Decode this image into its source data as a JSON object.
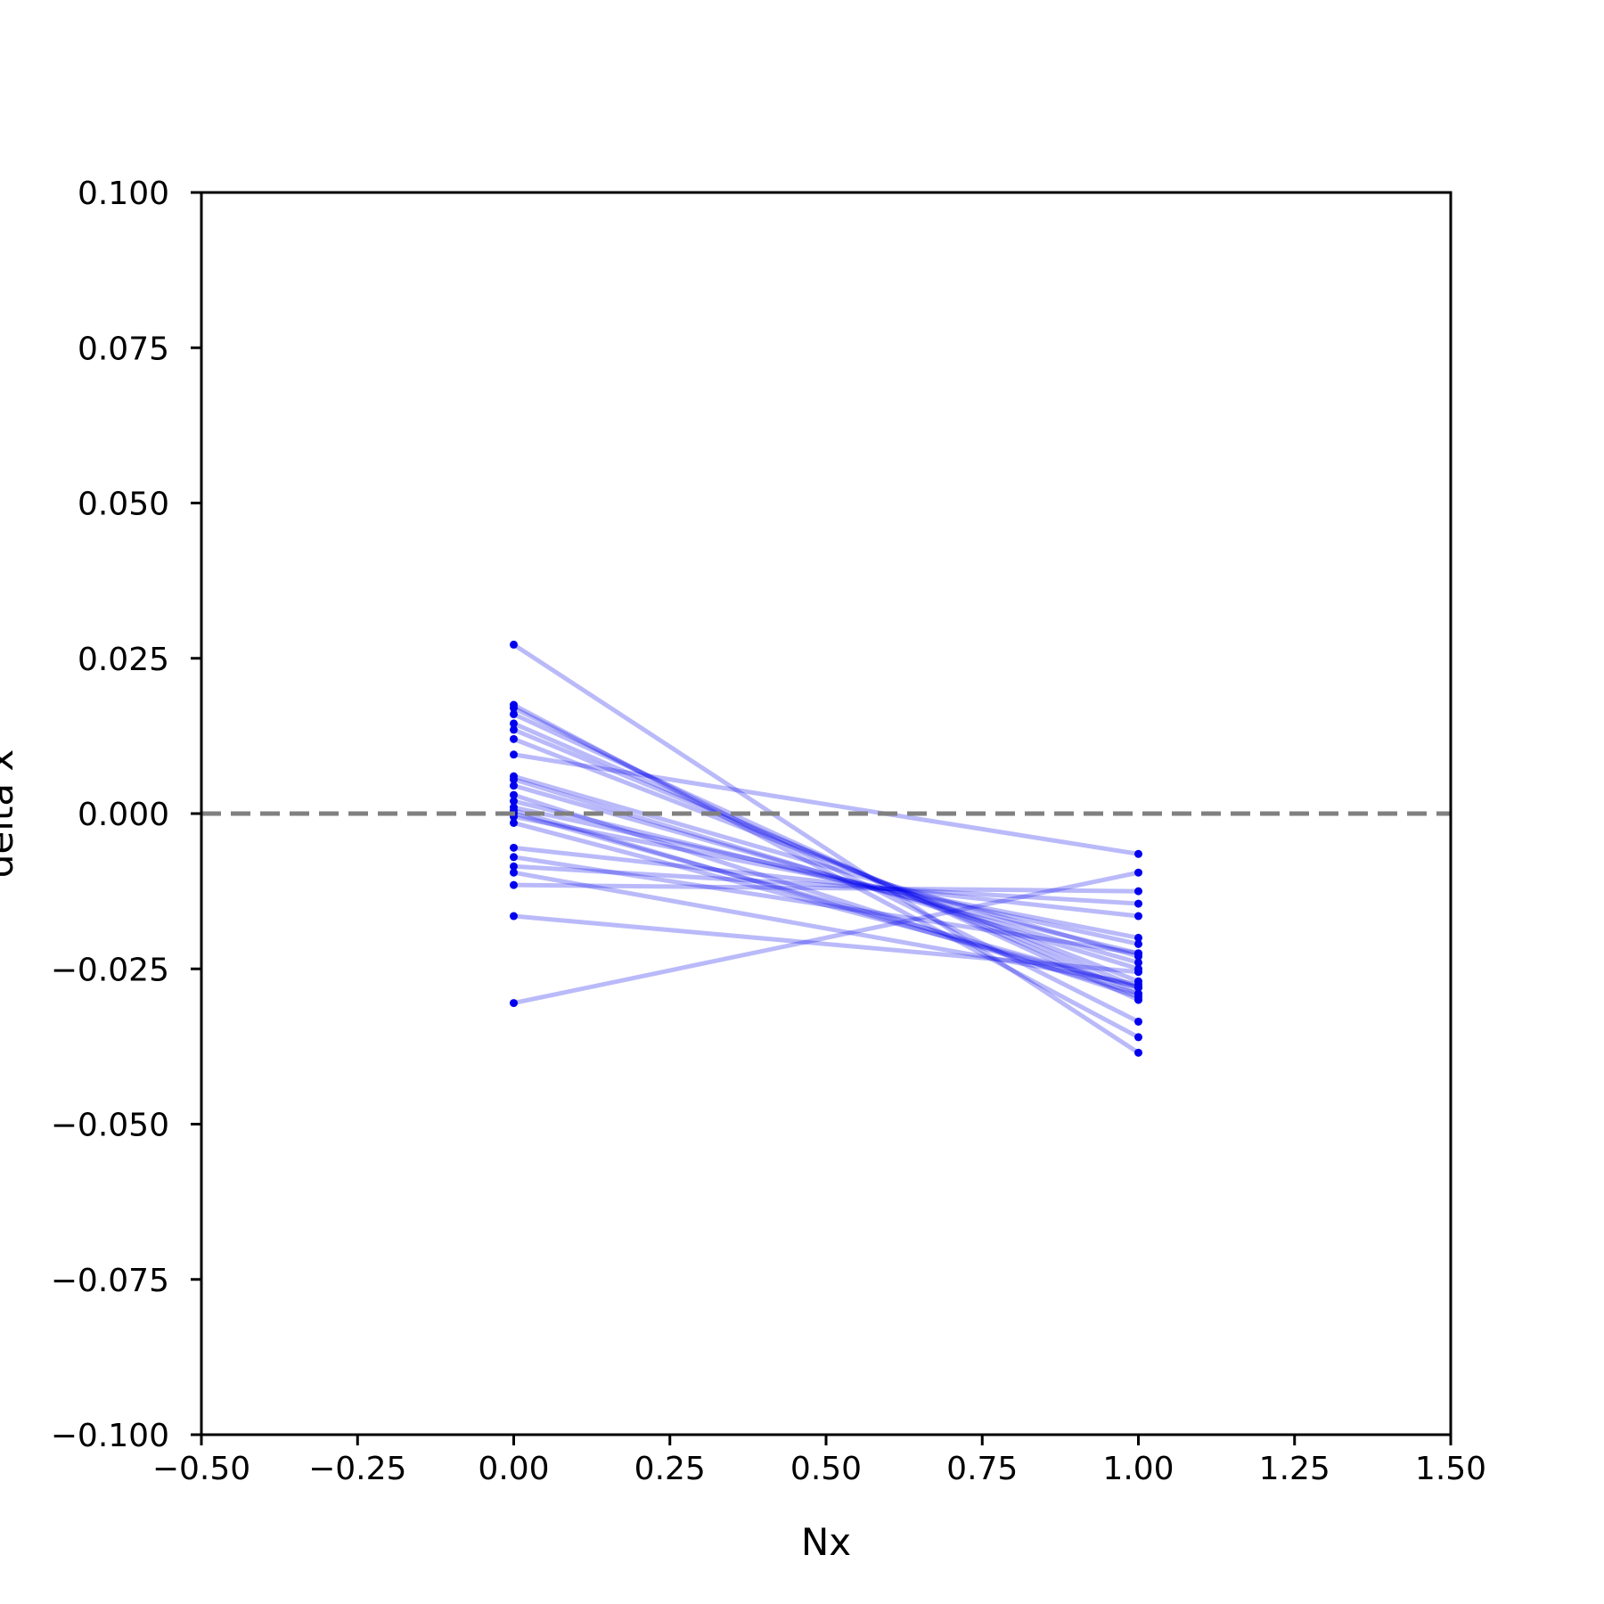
{
  "chart_data": {
    "type": "line",
    "title": "",
    "xlabel": "Nx",
    "ylabel": "delta x",
    "xlim": [
      -0.5,
      1.5
    ],
    "ylim": [
      -0.1,
      0.1
    ],
    "x_ticks": [
      -0.5,
      -0.25,
      0.0,
      0.25,
      0.5,
      0.75,
      1.0,
      1.25,
      1.5
    ],
    "x_tick_labels": [
      "−0.50",
      "−0.25",
      "0.00",
      "0.25",
      "0.50",
      "0.75",
      "1.00",
      "1.25",
      "1.50"
    ],
    "y_ticks": [
      0.1,
      0.075,
      0.05,
      0.025,
      0.0,
      -0.025,
      -0.05,
      -0.075,
      -0.1
    ],
    "y_tick_labels": [
      "0.100",
      "0.075",
      "0.050",
      "0.025",
      "0.000",
      "−0.025",
      "−0.050",
      "−0.075",
      "−0.100"
    ],
    "grid": false,
    "reference_line": {
      "y": 0.0,
      "style": "dashed",
      "color": "#808080"
    },
    "series_color": "#0000ee",
    "x": [
      0,
      1
    ],
    "series": [
      {
        "values": [
          0.0272,
          -0.0385
        ]
      },
      {
        "values": [
          0.0175,
          -0.036
        ]
      },
      {
        "values": [
          0.017,
          -0.0335
        ]
      },
      {
        "values": [
          0.016,
          -0.03
        ]
      },
      {
        "values": [
          0.0145,
          -0.029
        ]
      },
      {
        "values": [
          0.0135,
          -0.028
        ]
      },
      {
        "values": [
          0.012,
          -0.027
        ]
      },
      {
        "values": [
          0.0095,
          -0.0065
        ]
      },
      {
        "values": [
          0.006,
          -0.023
        ]
      },
      {
        "values": [
          0.0055,
          -0.025
        ]
      },
      {
        "values": [
          0.0045,
          -0.024
        ]
      },
      {
        "values": [
          0.003,
          -0.0295
        ]
      },
      {
        "values": [
          0.002,
          -0.0225
        ]
      },
      {
        "values": [
          0.001,
          -0.021
        ]
      },
      {
        "values": [
          0.0005,
          -0.029
        ]
      },
      {
        "values": [
          0.0,
          -0.028
        ]
      },
      {
        "values": [
          -0.0005,
          -0.02
        ]
      },
      {
        "values": [
          -0.0015,
          -0.028
        ]
      },
      {
        "values": [
          -0.0055,
          -0.0165
        ]
      },
      {
        "values": [
          -0.007,
          -0.0225
        ]
      },
      {
        "values": [
          -0.0085,
          -0.0145
        ]
      },
      {
        "values": [
          -0.0095,
          -0.0275
        ]
      },
      {
        "values": [
          -0.0115,
          -0.0125
        ]
      },
      {
        "values": [
          -0.0165,
          -0.0255
        ]
      },
      {
        "values": [
          -0.0305,
          -0.0095
        ]
      }
    ]
  }
}
